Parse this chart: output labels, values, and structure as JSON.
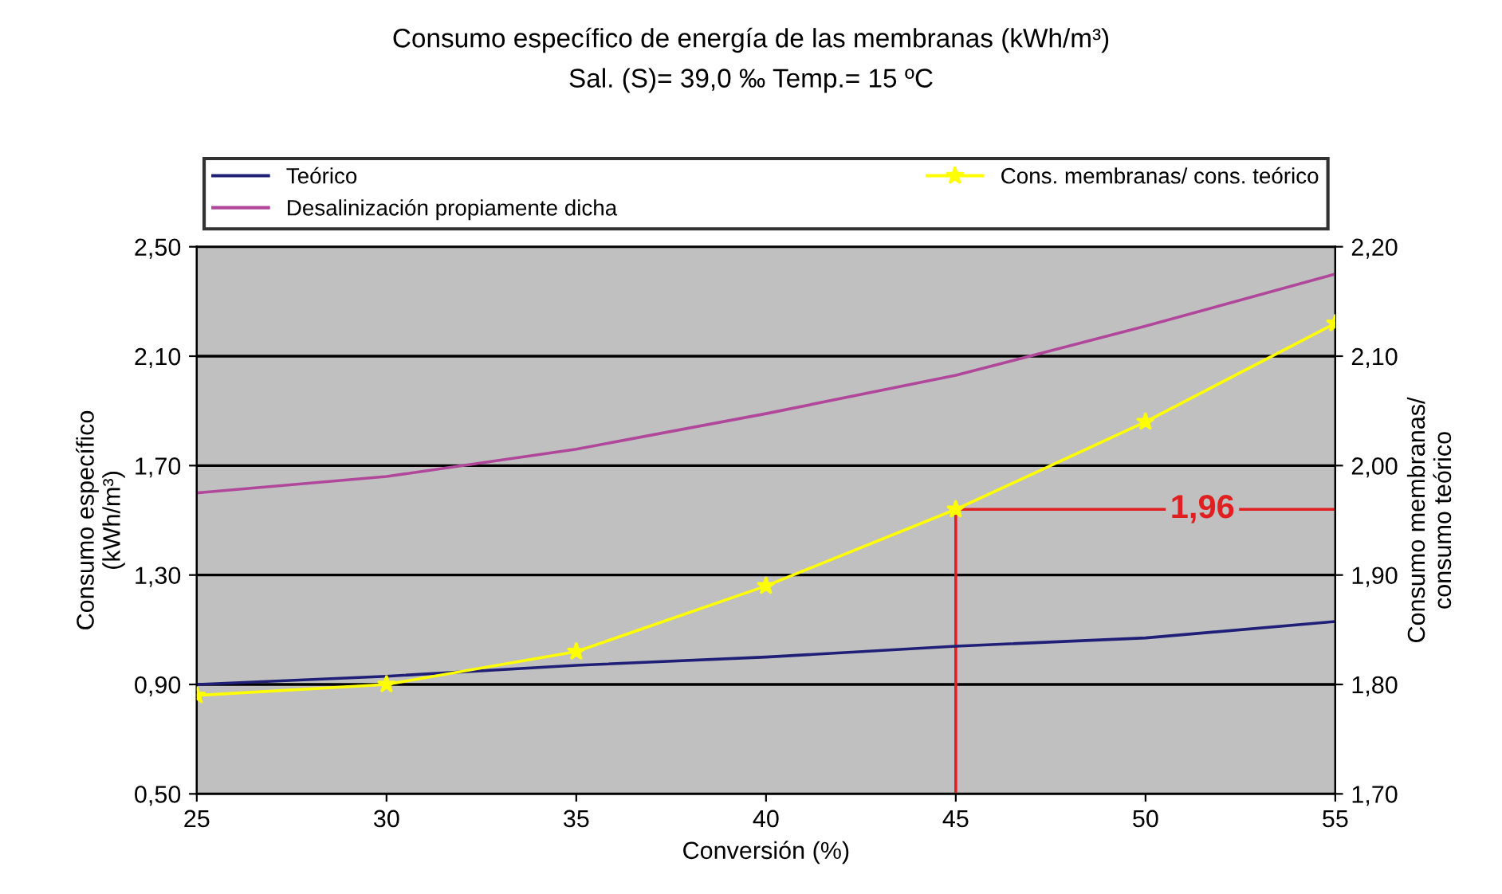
{
  "chart_data": {
    "type": "line",
    "title": "Consumo específico de energía de las membranas (kWh/m³)",
    "subtitle": "Sal. (S)= 39,0 ‰ Temp.= 15 ºC",
    "xlabel": "Conversión (%)",
    "ylabel": "Consumo específico\n(kWh/m³)",
    "y2label": "Consumo membranas/\nconsumo teórico",
    "x": [
      25,
      30,
      35,
      40,
      45,
      50,
      55
    ],
    "series": [
      {
        "name": "Teórico",
        "color": "#1f1f78",
        "marker": "none",
        "values": [
          0.9,
          0.93,
          0.97,
          1.0,
          1.04,
          1.07,
          1.13
        ]
      },
      {
        "name": "Desalinización propiamente dicha",
        "color": "#b0479a",
        "marker": "none",
        "values": [
          1.6,
          1.66,
          1.76,
          1.89,
          2.03,
          2.21,
          2.4
        ]
      },
      {
        "name": "Cons. membranas/ cons. teórico",
        "color": "#ffff00",
        "marker": "star",
        "axis": "y2",
        "values": [
          1.79,
          1.8,
          1.83,
          1.89,
          1.96,
          2.04,
          2.13
        ]
      }
    ],
    "xlim": [
      25,
      55
    ],
    "xticks": [
      25,
      30,
      35,
      40,
      45,
      50,
      55
    ],
    "ylim": [
      0.5,
      2.5
    ],
    "yticks": [
      {
        "value": 0.5,
        "label": "0,50"
      },
      {
        "value": 0.9,
        "label": "0,90"
      },
      {
        "value": 1.3,
        "label": "1,30"
      },
      {
        "value": 1.7,
        "label": "1,70"
      },
      {
        "value": 2.1,
        "label": "2,10"
      },
      {
        "value": 2.5,
        "label": "2,50"
      }
    ],
    "y2lim": [
      1.7,
      2.2
    ],
    "y2ticks": [
      {
        "value": 1.7,
        "label": "1,70"
      },
      {
        "value": 1.8,
        "label": "1,80"
      },
      {
        "value": 1.9,
        "label": "1,90"
      },
      {
        "value": 2.0,
        "label": "2,00"
      },
      {
        "value": 2.1,
        "label": "2,10"
      },
      {
        "value": 2.2,
        "label": "2,20"
      }
    ],
    "ref_lines": [
      {
        "axis": "x",
        "value": 45,
        "color": "#e02020"
      },
      {
        "axis": "y2",
        "value": 1.96,
        "label": "1,96",
        "color": "#e02020"
      }
    ],
    "grid": "y",
    "legend": "top",
    "line_style": "solid"
  }
}
